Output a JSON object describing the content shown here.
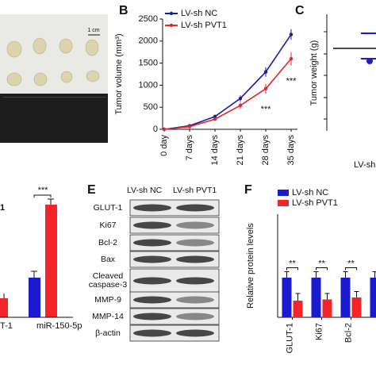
{
  "photo": {
    "scale": "1 cm"
  },
  "chart_data": [
    {
      "type": "line",
      "label": "B",
      "y_label": "Tumor volume (mm³)",
      "categories": [
        "0 day",
        "7 days",
        "14 days",
        "21 days",
        "28 days",
        "35 days"
      ],
      "series": [
        {
          "name": "LV-sh NC",
          "color": "#1c1c9c",
          "values": [
            0,
            80,
            290,
            700,
            1300,
            2150
          ],
          "errors": [
            0,
            15,
            40,
            70,
            110,
            120
          ]
        },
        {
          "name": "LV-sh PVT1",
          "color": "#e3262b",
          "values": [
            0,
            60,
            230,
            540,
            920,
            1600
          ],
          "errors": [
            0,
            15,
            40,
            70,
            110,
            150
          ]
        }
      ],
      "ylim": [
        0,
        2500
      ],
      "yticks": [
        0,
        500,
        1000,
        1500,
        2000,
        2500
      ],
      "annotations": [
        {
          "text": "***",
          "x": "28 days"
        },
        {
          "text": "***",
          "x": "35 days"
        }
      ]
    },
    {
      "type": "bar",
      "label": "F",
      "y_label": "Relative protein levels",
      "categories": [
        "GLUT-1",
        "Ki67",
        "Bcl-2",
        null
      ],
      "series": [
        {
          "name": "LV-sh NC",
          "color": "#1a1ad0",
          "values": [
            1,
            1,
            1,
            1
          ],
          "errors": [
            0.15,
            0.15,
            0.15,
            0.15
          ]
        },
        {
          "name": "LV-sh PVT1",
          "color": "#f2252a",
          "values": [
            0.42,
            0.45,
            0.5,
            null
          ],
          "errors": [
            0.18,
            0.15,
            0.15,
            null
          ]
        }
      ],
      "ylim": [
        0,
        2.6
      ],
      "annotations": [
        {
          "text": "**",
          "x": "GLUT-1"
        },
        {
          "text": "**",
          "x": "Ki67"
        },
        {
          "text": "**",
          "x": "Bcl-2"
        }
      ]
    }
  ],
  "panel_c": {
    "label": "C",
    "y_label": "Tumor weight (g)",
    "x_label": "LV-sh"
  },
  "panel_d": {
    "significance": "***",
    "fragment": "1",
    "categories": [
      "T-1",
      "miR-150-5p"
    ]
  },
  "blot": {
    "label": "E",
    "columns": [
      "LV-sh NC",
      "LV-sh PVT1"
    ],
    "rows": [
      "GLUT-1",
      "Ki67",
      "Bcl-2",
      "Bax",
      "Cleaved caspase-3",
      "MMP-9",
      "MMP-14",
      "β-actin"
    ]
  }
}
